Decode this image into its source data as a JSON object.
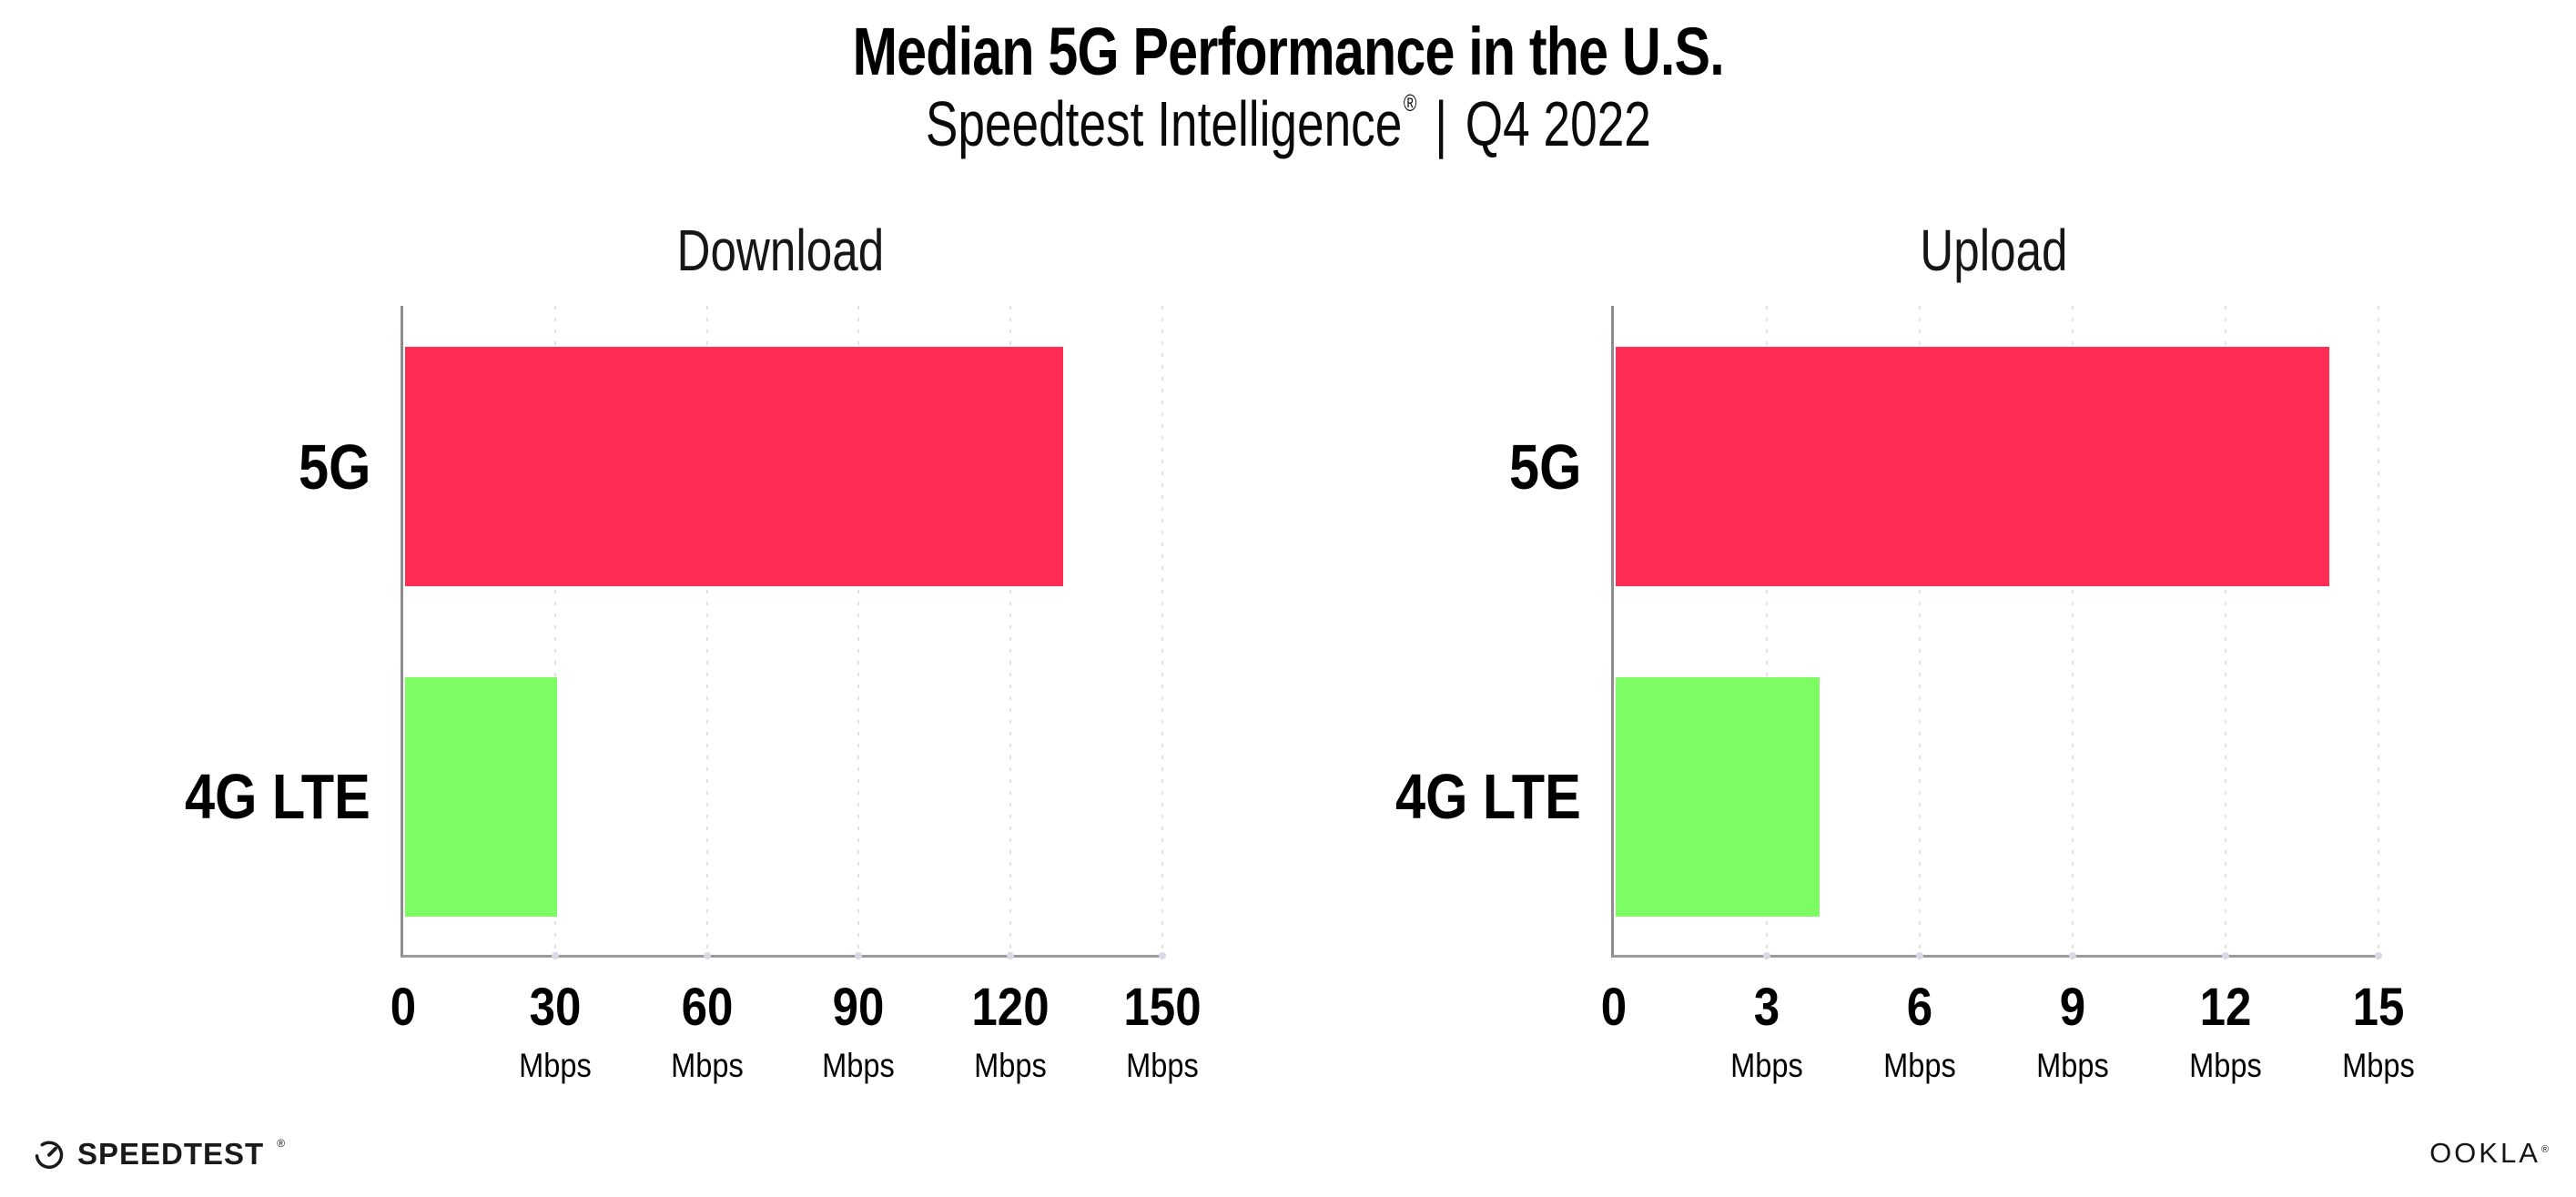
{
  "header": {
    "title": "Median 5G Performance in the U.S.",
    "subtitle_brand": "Speedtest Intelligence",
    "subtitle_registered": "®",
    "subtitle_separator": "|",
    "subtitle_period": "Q4 2022"
  },
  "chart_data": [
    {
      "type": "bar",
      "orientation": "horizontal",
      "title": "Download",
      "categories": [
        "5G",
        "4G LTE"
      ],
      "values": [
        130,
        30
      ],
      "unit": "Mbps",
      "xlabel": "",
      "xlim": [
        0,
        150
      ],
      "ticks": [
        "0",
        "30",
        "60",
        "90",
        "120",
        "150"
      ],
      "grid": "dotted vertical gridlines at each tick",
      "legend": "none",
      "bar_colors": [
        "#ff2d55",
        "#7efc64"
      ]
    },
    {
      "type": "bar",
      "orientation": "horizontal",
      "title": "Upload",
      "categories": [
        "5G",
        "4G LTE"
      ],
      "values": [
        14,
        4
      ],
      "unit": "Mbps",
      "xlabel": "",
      "xlim": [
        0,
        15
      ],
      "ticks": [
        "0",
        "3",
        "6",
        "9",
        "12",
        "15"
      ],
      "grid": "dotted vertical gridlines at each tick",
      "legend": "none",
      "bar_colors": [
        "#ff2d55",
        "#7efc64"
      ]
    }
  ],
  "footer": {
    "speedtest_wordmark": "SPEEDTEST",
    "speedtest_trademark": "®",
    "ookla_wordmark": "OOKLA",
    "ookla_trademark": "®"
  },
  "colors": {
    "bar_5g": "#ff2d55",
    "bar_4g_lte": "#7efc64",
    "gridline": "#e0e1eb",
    "axis": "#9a9a9a",
    "text": "#000000",
    "background": "#ffffff"
  }
}
